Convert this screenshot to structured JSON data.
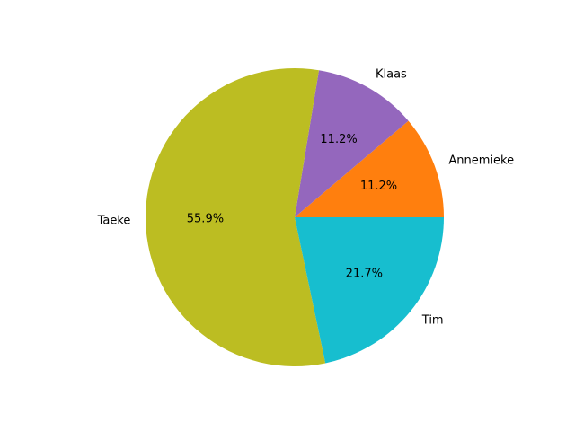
{
  "chart_data": {
    "type": "pie",
    "labels": [
      "Annemieke",
      "Klaas",
      "Taeke",
      "Tim"
    ],
    "values": [
      11.2,
      11.2,
      55.9,
      21.7
    ],
    "pct_labels": [
      "11.2%",
      "11.2%",
      "55.9%",
      "21.7%"
    ],
    "colors": [
      "#ff7f0e",
      "#9467bd",
      "#bcbd22",
      "#17becf"
    ],
    "start_angle_deg": 0,
    "direction": "counterclockwise",
    "legend": "none"
  }
}
